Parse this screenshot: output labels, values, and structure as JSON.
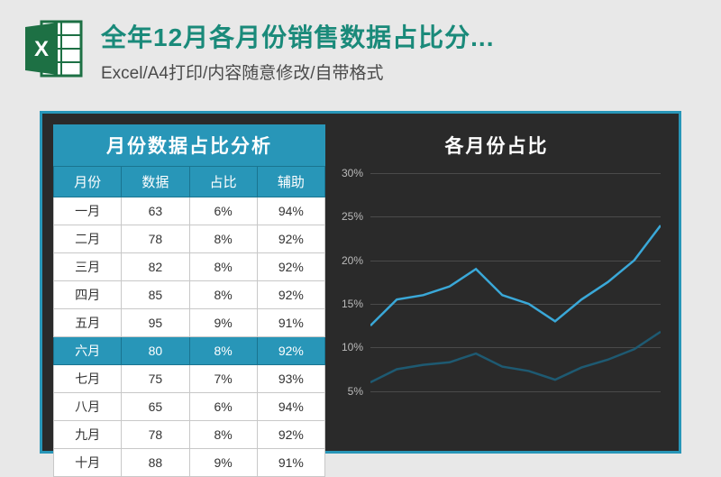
{
  "header": {
    "title": "全年12月各月份销售数据占比分...",
    "subtitle": "Excel/A4打印/内容随意修改/自带格式"
  },
  "table": {
    "title": "月份数据占比分析",
    "columns": [
      "月份",
      "数据",
      "占比",
      "辅助"
    ],
    "rows": [
      {
        "month": "一月",
        "data": "63",
        "pct": "6%",
        "aux": "94%",
        "hl": false
      },
      {
        "month": "二月",
        "data": "78",
        "pct": "8%",
        "aux": "92%",
        "hl": false
      },
      {
        "month": "三月",
        "data": "82",
        "pct": "8%",
        "aux": "92%",
        "hl": false
      },
      {
        "month": "四月",
        "data": "85",
        "pct": "8%",
        "aux": "92%",
        "hl": false
      },
      {
        "month": "五月",
        "data": "95",
        "pct": "9%",
        "aux": "91%",
        "hl": false
      },
      {
        "month": "六月",
        "data": "80",
        "pct": "8%",
        "aux": "92%",
        "hl": true
      },
      {
        "month": "七月",
        "data": "75",
        "pct": "7%",
        "aux": "93%",
        "hl": false
      },
      {
        "month": "八月",
        "data": "65",
        "pct": "6%",
        "aux": "94%",
        "hl": false
      },
      {
        "month": "九月",
        "data": "78",
        "pct": "8%",
        "aux": "92%",
        "hl": false
      },
      {
        "month": "十月",
        "data": "88",
        "pct": "9%",
        "aux": "91%",
        "hl": false
      }
    ]
  },
  "chart": {
    "title": "各月份占比",
    "type": "line",
    "ylim": [
      0,
      30
    ],
    "yticks": [
      5,
      10,
      15,
      20,
      25,
      30
    ],
    "ytick_labels": [
      "5%",
      "10%",
      "15%",
      "20%",
      "25%",
      "30%"
    ],
    "grid_color": "#4a4a4a",
    "background_color": "#2a2a2a",
    "series": [
      {
        "name": "line1",
        "color": "#3aa8d8",
        "width": 2.5,
        "values": [
          12.5,
          15.5,
          16,
          17,
          19,
          16,
          15,
          13,
          15.5,
          17.5,
          20,
          24
        ]
      },
      {
        "name": "line2",
        "color": "#1e5a72",
        "width": 2.5,
        "values": [
          6,
          7.5,
          8,
          8.3,
          9.3,
          7.8,
          7.3,
          6.3,
          7.7,
          8.6,
          9.8,
          11.8
        ]
      }
    ]
  },
  "colors": {
    "accent": "#2896b8",
    "excel_green": "#1d7044",
    "title_teal": "#1a8a7a"
  }
}
